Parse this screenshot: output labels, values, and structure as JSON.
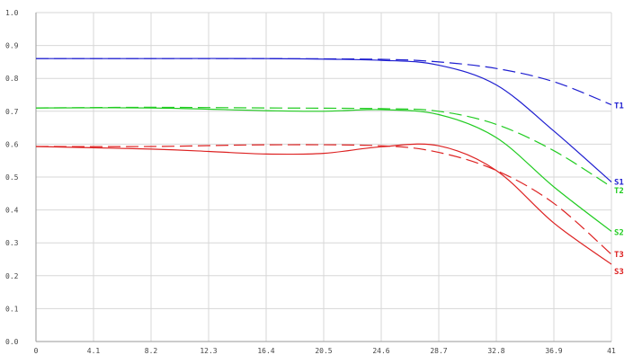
{
  "chart_data": {
    "type": "line",
    "title": "",
    "xlabel": "",
    "ylabel": "",
    "xlim": [
      0,
      41
    ],
    "ylim": [
      0,
      1.0
    ],
    "grid": true,
    "legend": "none (series labels at right end of lines)",
    "x_ticks": [
      "0",
      "4.1",
      "8.2",
      "12.3",
      "16.4",
      "20.5",
      "24.6",
      "28.7",
      "32.8",
      "36.9",
      "41"
    ],
    "y_ticks": [
      "0.0",
      "0.1",
      "0.2",
      "0.3",
      "0.4",
      "0.5",
      "0.6",
      "0.7",
      "0.8",
      "0.9",
      "1.0"
    ],
    "series": [
      {
        "name": "T1",
        "color": "#1f1fd0",
        "style": "dashed",
        "points": [
          [
            0,
            0.86
          ],
          [
            8.2,
            0.86
          ],
          [
            16.4,
            0.86
          ],
          [
            24.6,
            0.858
          ],
          [
            28.7,
            0.85
          ],
          [
            32.8,
            0.83
          ],
          [
            36.9,
            0.79
          ],
          [
            41,
            0.72
          ]
        ]
      },
      {
        "name": "S1",
        "color": "#1f1fd0",
        "style": "solid",
        "points": [
          [
            0,
            0.86
          ],
          [
            8.2,
            0.86
          ],
          [
            16.4,
            0.86
          ],
          [
            24.6,
            0.855
          ],
          [
            28.7,
            0.84
          ],
          [
            32.8,
            0.78
          ],
          [
            36.9,
            0.64
          ],
          [
            41,
            0.485
          ]
        ]
      },
      {
        "name": "T2",
        "color": "#22cc22",
        "style": "dashed",
        "points": [
          [
            0,
            0.71
          ],
          [
            8.2,
            0.712
          ],
          [
            16.4,
            0.71
          ],
          [
            24.6,
            0.708
          ],
          [
            28.7,
            0.7
          ],
          [
            32.8,
            0.66
          ],
          [
            36.9,
            0.58
          ],
          [
            41,
            0.47
          ]
        ]
      },
      {
        "name": "S2",
        "color": "#22cc22",
        "style": "solid",
        "points": [
          [
            0,
            0.71
          ],
          [
            8.2,
            0.71
          ],
          [
            16.4,
            0.702
          ],
          [
            20.5,
            0.7
          ],
          [
            24.6,
            0.705
          ],
          [
            28.7,
            0.69
          ],
          [
            32.8,
            0.62
          ],
          [
            36.9,
            0.47
          ],
          [
            41,
            0.335
          ]
        ]
      },
      {
        "name": "T3",
        "color": "#dd2222",
        "style": "dashed",
        "points": [
          [
            0,
            0.593
          ],
          [
            8.2,
            0.593
          ],
          [
            16.4,
            0.598
          ],
          [
            24.6,
            0.595
          ],
          [
            28.7,
            0.575
          ],
          [
            32.8,
            0.52
          ],
          [
            36.9,
            0.42
          ],
          [
            41,
            0.265
          ]
        ]
      },
      {
        "name": "S3",
        "color": "#dd2222",
        "style": "solid",
        "points": [
          [
            0,
            0.593
          ],
          [
            8.2,
            0.585
          ],
          [
            12.3,
            0.578
          ],
          [
            16.4,
            0.57
          ],
          [
            20.5,
            0.572
          ],
          [
            24.6,
            0.592
          ],
          [
            28.7,
            0.595
          ],
          [
            32.8,
            0.52
          ],
          [
            36.9,
            0.36
          ],
          [
            41,
            0.235
          ]
        ]
      }
    ]
  }
}
